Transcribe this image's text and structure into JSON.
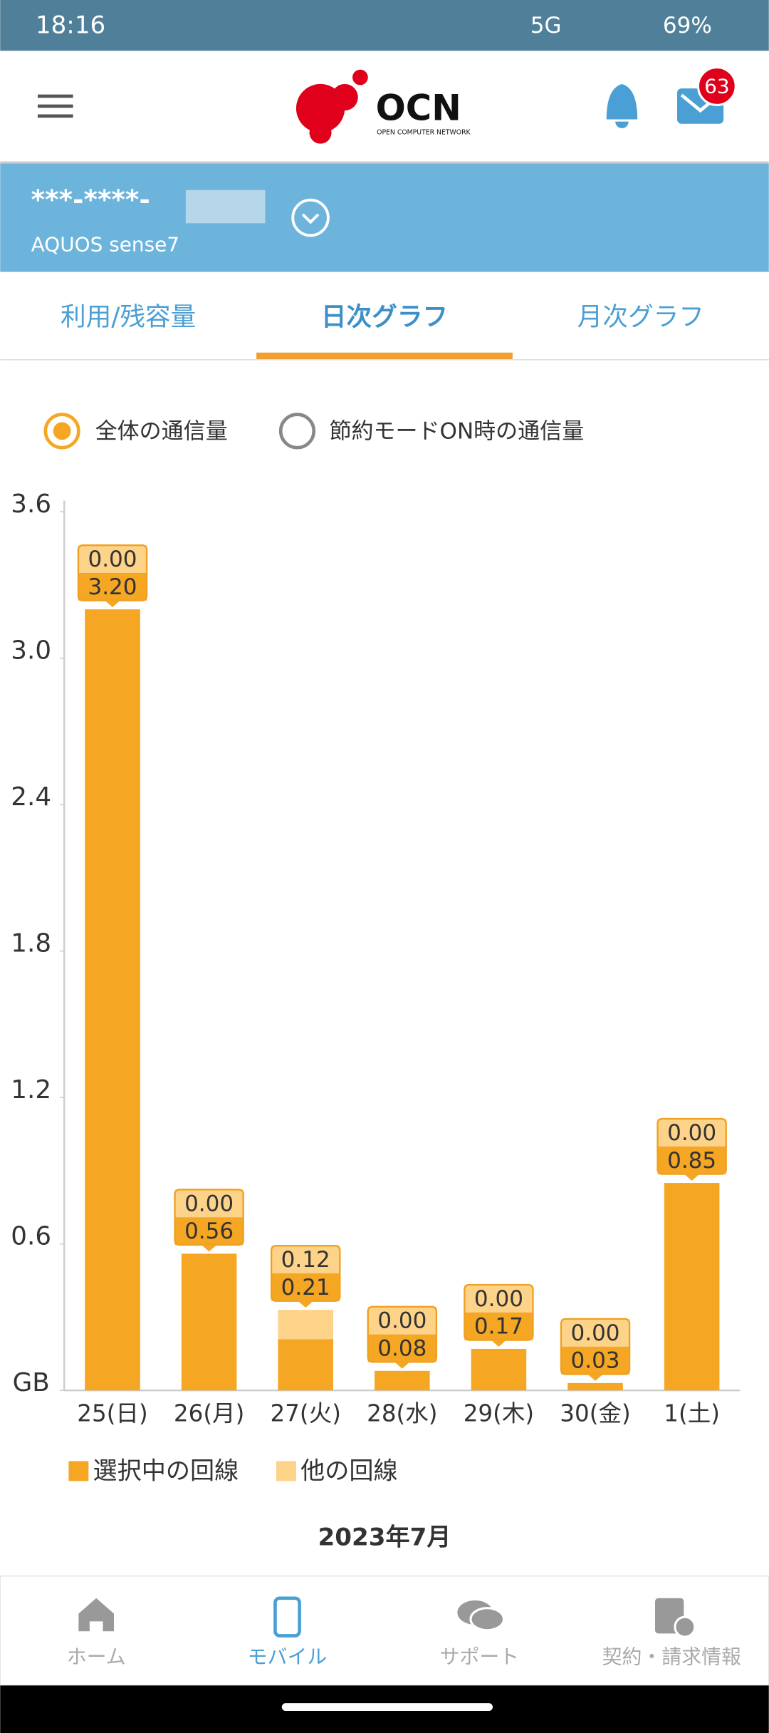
{
  "status_bar": {
    "time": "18:16",
    "network": "5G",
    "battery": "69%"
  },
  "header": {
    "logo": "OCN",
    "logo_sub": "OPEN COMPUTER NETWORK",
    "badge": "63"
  },
  "account": {
    "number": "***-****-",
    "device": "AQUOS sense7"
  },
  "tabs": [
    "利用/残容量",
    "日次グラフ",
    "月次グラフ"
  ],
  "options": [
    "全体の通信量",
    "節約モードON時の通信量"
  ],
  "chart_data": {
    "type": "bar",
    "stacked": true,
    "categories": [
      "25(日)",
      "26(月)",
      "27(火)",
      "28(水)",
      "29(木)",
      "30(金)",
      "1(土)"
    ],
    "series": [
      {
        "name": "選択中の回線",
        "color": "#f5a623",
        "values": [
          3.2,
          0.56,
          0.21,
          0.08,
          0.17,
          0.03,
          0.85
        ],
        "value_labels": [
          "3.20",
          "0.56",
          "0.21",
          "0.08",
          "0.17",
          "0.03",
          "0.85"
        ]
      },
      {
        "name": "他の回線",
        "color": "#fdd38a",
        "values": [
          0,
          0,
          0.12,
          0,
          0,
          0,
          0
        ],
        "value_labels": [
          "0.00",
          "0.00",
          "0.12",
          "0.00",
          "0.00",
          "0.00",
          "0.00"
        ]
      }
    ],
    "ylim": [
      0,
      3.6
    ],
    "yticks": [
      {
        "value": 0,
        "label": "GB"
      },
      0.6,
      1.2,
      1.8,
      2.4,
      {
        "value": 3,
        "label": "3.0"
      },
      3.6
    ],
    "x_label": "2023年7月"
  },
  "nav": [
    "ホーム",
    "モバイル",
    "サポート",
    "契約・請求情報"
  ]
}
